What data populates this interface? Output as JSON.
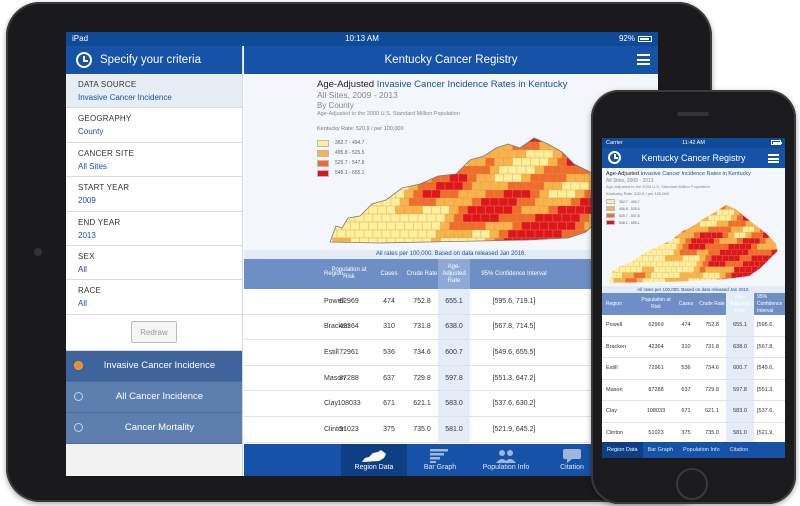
{
  "ipad": {
    "status": {
      "carrier": "iPad",
      "time": "10:13 AM",
      "battery": "92%"
    },
    "left_panel": {
      "title": "Specify your criteria",
      "criteria": [
        {
          "label": "DATA SOURCE",
          "value": "Invasive Cancer Incidence"
        },
        {
          "label": "GEOGRAPHY",
          "value": "County"
        },
        {
          "label": "CANCER SITE",
          "value": "All Sites"
        },
        {
          "label": "START YEAR",
          "value": "2009"
        },
        {
          "label": "END YEAR",
          "value": "2013"
        },
        {
          "label": "SEX",
          "value": "All"
        },
        {
          "label": "RACE",
          "value": "All"
        }
      ],
      "redraw_label": "Redraw",
      "options": [
        {
          "label": "Invasive Cancer Incidence",
          "selected": true
        },
        {
          "label": "All Cancer Incidence",
          "selected": false
        },
        {
          "label": "Cancer Mortality",
          "selected": false
        }
      ]
    },
    "header": {
      "title_pre": "Kentucky",
      "title_post": " Cancer Registry"
    },
    "map": {
      "title_prefix": "Age-Adjusted ",
      "title_link": "Invasive Cancer Incidence Rates in Kentucky",
      "subtitle": "All Sites, 2009 - 2013",
      "by": "By County",
      "adjusted": "Age-Adjusted to the 2000 U.S. Standard Million Population",
      "state_rate": "Kentucky Rate: 520.9 / per 100,000",
      "legend": [
        {
          "label": "362.7 - 494.7",
          "color": "#ffef9a"
        },
        {
          "label": "495.8 - 525.5",
          "color": "#fbb24a"
        },
        {
          "label": "525.7 - 547.8",
          "color": "#f26b2a"
        },
        {
          "label": "548.1 - 655.1",
          "color": "#e0141a"
        }
      ]
    },
    "note": "All rates per 100,000. Based on data released Jan 2016.",
    "table": {
      "headers": [
        "Region",
        "Population at Risk",
        "Cases",
        "Crude Rate",
        "Age-Adjusted Rate",
        "95% Confidence Interval"
      ],
      "rows": [
        [
          "Powell",
          "62969",
          "474",
          "752.8",
          "655.1",
          "[595.6, 719.1]"
        ],
        [
          "Bracken",
          "42364",
          "310",
          "731.8",
          "638.0",
          "[567.8, 714.5]"
        ],
        [
          "Estill",
          "72961",
          "536",
          "734.6",
          "600.7",
          "[549.6, 655.5]"
        ],
        [
          "Mason",
          "87288",
          "637",
          "729.8",
          "597.8",
          "[551.3, 647.2]"
        ],
        [
          "Clay",
          "108033",
          "671",
          "621.1",
          "583.0",
          "[537.6, 630.2]"
        ],
        [
          "Clinton",
          "51023",
          "375",
          "735.0",
          "581.0",
          "[521.9, 645.2]"
        ]
      ]
    },
    "tabs": [
      "Region Data",
      "Bar Graph",
      "Population Info",
      "Citation"
    ]
  },
  "iphone": {
    "status": {
      "carrier": "Carrier",
      "time": "11:42 AM"
    },
    "header": {
      "title_pre": "Kentucky",
      "title_post": " Cancer Registry"
    },
    "map": {
      "title_prefix": "Age-Adjusted ",
      "title_link": "Invasive Cancer Incidence Rates in Kentucky",
      "subtitle": "All Sites, 2009 - 2013",
      "adjusted": "Age-Adjusted to the 2000 U.S. Standard Million Population",
      "state_rate": "Kentucky Rate: 520.9 / per 100,000",
      "legend": [
        "362.7 - 494.7",
        "495.8 - 525.5",
        "525.7 - 547.8",
        "548.1 - 655.1"
      ]
    },
    "note": "All rates per 100,000. Based on data released Jan 2016.",
    "table": {
      "headers": [
        "Region",
        "Population at Risk",
        "Cases",
        "Crude Rate",
        "Age-Adjusted Rate",
        "95% Confidence Interval"
      ],
      "rows": [
        [
          "Powell",
          "62969",
          "474",
          "752.8",
          "655.1",
          "[595.6,"
        ],
        [
          "Bracken",
          "42364",
          "310",
          "731.8",
          "638.0",
          "[567.8,"
        ],
        [
          "Estill",
          "72961",
          "536",
          "734.6",
          "600.7",
          "[549.6,"
        ],
        [
          "Mason",
          "87288",
          "637",
          "729.8",
          "597.8",
          "[551.3,"
        ],
        [
          "Clay",
          "108033",
          "671",
          "621.1",
          "583.0",
          "[537.6,"
        ],
        [
          "Clinton",
          "51023",
          "375",
          "735.0",
          "581.0",
          "[521.9,"
        ]
      ]
    },
    "tabs": [
      "Region Data",
      "Bar Graph",
      "Population Info",
      "Citation"
    ]
  }
}
